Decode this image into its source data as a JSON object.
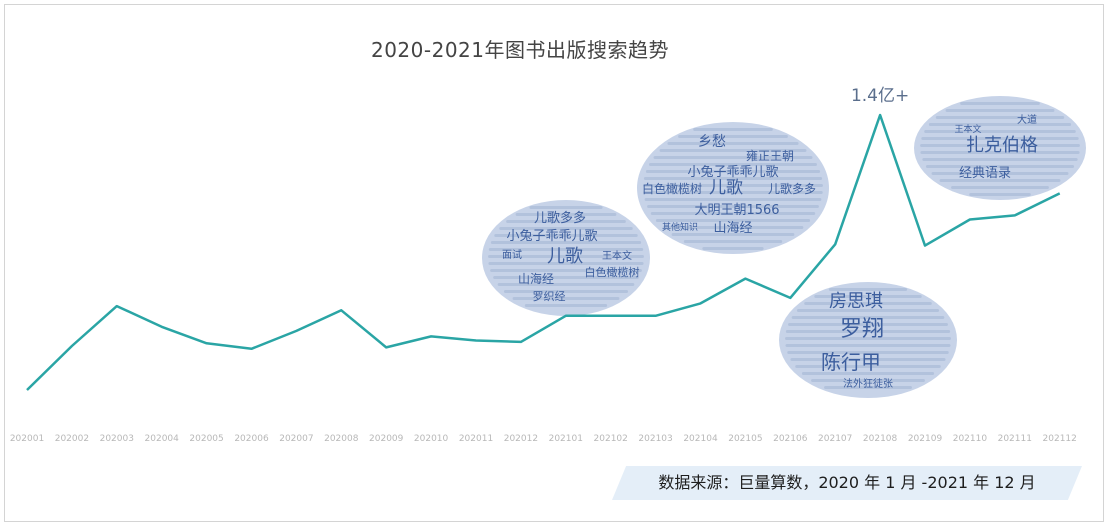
{
  "chart_data": {
    "type": "line",
    "title": "2020-2021年图书出版搜索趋势",
    "x": [
      "202001",
      "202002",
      "202003",
      "202004",
      "202005",
      "202006",
      "202007",
      "202008",
      "202009",
      "202010",
      "202011",
      "202012",
      "202101",
      "202102",
      "202103",
      "202104",
      "202105",
      "202106",
      "202107",
      "202108",
      "202109",
      "202110",
      "202111",
      "202112"
    ],
    "values": [
      0.0,
      0.32,
      0.61,
      0.46,
      0.34,
      0.3,
      0.43,
      0.58,
      0.31,
      0.39,
      0.36,
      0.35,
      0.54,
      0.54,
      0.54,
      0.63,
      0.81,
      0.67,
      1.06,
      2.0,
      1.05,
      1.24,
      1.27,
      1.43
    ],
    "line_color": "#2aa5a5",
    "peak_label": "1.4亿+",
    "peak_index": 19,
    "grid": false,
    "legend": "none"
  },
  "word_clouds": [
    {
      "name": "cloud-2020-12",
      "words": [
        "儿歌多多",
        "小兔子乖乖儿歌",
        "儿歌",
        "山海经",
        "白色橄榄树",
        "罗织经",
        "王本文",
        "面试"
      ]
    },
    {
      "name": "cloud-2021-05",
      "words": [
        "乡愁",
        "雍正王朝",
        "小兔子乖乖儿歌",
        "白色橄榄树",
        "儿歌",
        "儿歌多多",
        "大明王朝1566",
        "山海经",
        "其他知识"
      ]
    },
    {
      "name": "cloud-2021-08",
      "words": [
        "房思琪",
        "罗翔",
        "陈行甲",
        "法外狂徒张"
      ]
    },
    {
      "name": "cloud-2021-12",
      "words": [
        "扎克伯格",
        "经典语录",
        "大道",
        "王本文"
      ]
    }
  ],
  "source": "数据来源：巨量算数，2020 年 1 月 -2021 年 12 月",
  "colors": {
    "cloud_text": "#3c5e9e",
    "cloud_fill": "#c7d3e8",
    "banner": "#e4eef8"
  }
}
